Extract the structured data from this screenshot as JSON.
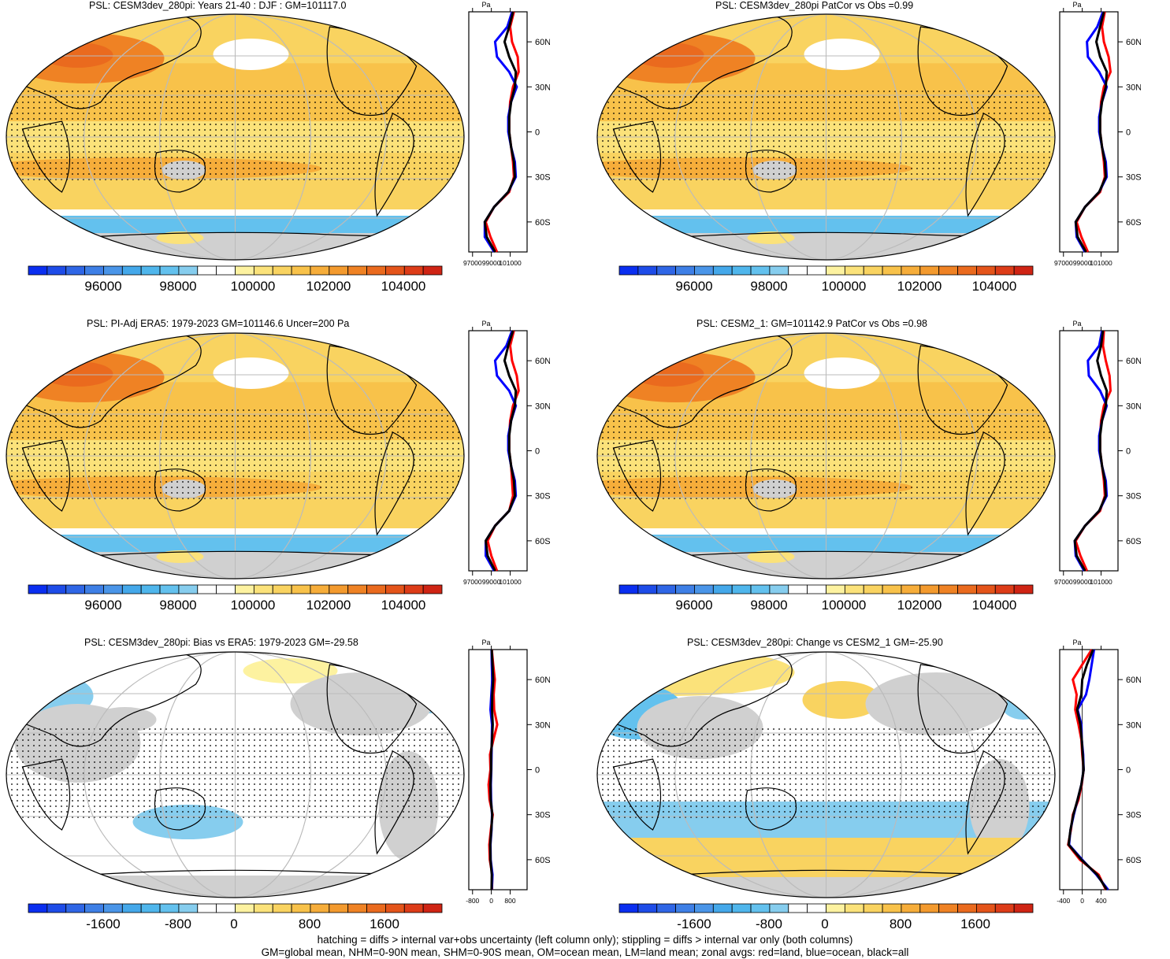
{
  "panels": [
    {
      "id": "p1",
      "title": "PSL: CESM3dev_280pi: Years 21-40 : DJF : GM=101117.0",
      "kind": "abs",
      "profile_xticks": [
        "97000",
        "99000",
        "101000"
      ],
      "profile_unit": "Pa"
    },
    {
      "id": "p2",
      "title": "PSL: CESM3dev_280pi PatCor vs Obs =0.99",
      "kind": "abs",
      "profile_xticks": [
        "97000",
        "99000",
        "101000"
      ],
      "profile_unit": "Pa"
    },
    {
      "id": "p3",
      "title": "PSL: PI-Adj ERA5: 1979-2023 GM=101146.6 Uncer=200 Pa",
      "kind": "abs",
      "profile_xticks": [
        "97000",
        "99000",
        "101000"
      ],
      "profile_unit": "Pa"
    },
    {
      "id": "p4",
      "title": "PSL: CESM2_1: GM=101142.9 PatCor vs Obs =0.98",
      "kind": "abs",
      "profile_xticks": [
        "97000",
        "99000",
        "101000"
      ],
      "profile_unit": "Pa"
    },
    {
      "id": "p5",
      "title": "PSL: CESM3dev_280pi: Bias vs ERA5: 1979-2023 GM=-29.58",
      "kind": "diff",
      "profile_xticks": [
        "-800",
        "0",
        "800"
      ],
      "profile_unit": "Pa"
    },
    {
      "id": "p6",
      "title": "PSL: CESM3dev_280pi: Change vs CESM2_1 GM=-25.90",
      "kind": "diff2",
      "profile_xticks": [
        "-400",
        "0",
        "400"
      ],
      "profile_unit": "Pa"
    }
  ],
  "lat_labels": [
    "60N",
    "30N",
    "0",
    "30S",
    "60S"
  ],
  "colorbar_abs": {
    "labels": [
      "96000",
      "98000",
      "100000",
      "102000",
      "104000"
    ]
  },
  "colorbar_diff": {
    "labels": [
      "-1600",
      "-800",
      "0",
      "800",
      "1600"
    ]
  },
  "colorbar_colors": [
    "#0a2ef0",
    "#1e4ce8",
    "#2f66e6",
    "#3e7fe6",
    "#4a95e8",
    "#44a8ea",
    "#4fb6ec",
    "#63c1ee",
    "#86cdee",
    "#ffffff",
    "#ffffff",
    "#fdf2a0",
    "#fbe27a",
    "#f9d360",
    "#f8c24a",
    "#f6ad3a",
    "#f39a2e",
    "#ef8224",
    "#ea6a1e",
    "#e4541a",
    "#dd3c18",
    "#cf2414"
  ],
  "colors": {
    "land": "red",
    "ocean": "blue",
    "all": "black",
    "gray": "#d0d0d0"
  },
  "footer": [
    "hatching = diffs > internal var+obs uncertainty (left column only); stippling = diffs > internal var only (both columns)",
    "GM=global mean, NHM=0-90N mean, SHM=0-90S mean, OM=ocean mean, LM=land mean; zonal avgs: red=land, blue=ocean, black=all"
  ],
  "chart_data": [
    {
      "type": "heatmap",
      "title": "PSL: CESM3dev_280pi: Years 21-40 : DJF : GM=101117.0",
      "colorbar_labels": [
        "96000",
        "98000",
        "100000",
        "102000",
        "104000"
      ],
      "zonal_profile": {
        "ylabel_ticks": [
          "60N",
          "30N",
          "0",
          "30S",
          "60S"
        ],
        "xticks": [
          "97000",
          "99000",
          "101000"
        ],
        "unit": "Pa",
        "lat": [
          80,
          70,
          60,
          50,
          40,
          30,
          20,
          10,
          0,
          -10,
          -20,
          -30,
          -40,
          -50,
          -60,
          -70,
          -80
        ],
        "land": [
          101400,
          101000,
          101200,
          101800,
          101900,
          101300,
          101000,
          100900,
          100900,
          101100,
          101300,
          101400,
          100900,
          99300,
          98400,
          98900,
          99600
        ],
        "ocean": [
          101200,
          100700,
          99400,
          99600,
          100900,
          101700,
          101100,
          100800,
          100800,
          101100,
          101500,
          101600,
          100800,
          99300,
          98300,
          98300,
          99300
        ],
        "all": [
          101300,
          100900,
          100400,
          100900,
          101600,
          101500,
          101100,
          100900,
          100900,
          101100,
          101400,
          101500,
          100800,
          99300,
          98300,
          98500,
          99400
        ]
      }
    },
    {
      "type": "heatmap",
      "title": "PSL: CESM3dev_280pi PatCor vs Obs =0.99",
      "colorbar_labels": [
        "96000",
        "98000",
        "100000",
        "102000",
        "104000"
      ],
      "zonal_profile": {
        "ylabel_ticks": [
          "60N",
          "30N",
          "0",
          "30S",
          "60S"
        ],
        "xticks": [
          "97000",
          "99000",
          "101000"
        ],
        "unit": "Pa",
        "lat": [
          80,
          70,
          60,
          50,
          40,
          30,
          20,
          10,
          0,
          -10,
          -20,
          -30,
          -40,
          -50,
          -60,
          -70,
          -80
        ],
        "land": [
          101400,
          101100,
          101300,
          101800,
          102000,
          101300,
          101000,
          100900,
          100900,
          101100,
          101300,
          101400,
          100900,
          99300,
          98400,
          98900,
          99600
        ],
        "ocean": [
          101200,
          100600,
          99500,
          99600,
          100800,
          101600,
          101100,
          100800,
          100800,
          101100,
          101500,
          101600,
          100800,
          99300,
          98300,
          98400,
          99300
        ],
        "all": [
          101300,
          100900,
          100500,
          100900,
          101600,
          101500,
          101100,
          100900,
          100900,
          101100,
          101400,
          101500,
          100800,
          99300,
          98300,
          98500,
          99400
        ]
      }
    },
    {
      "type": "heatmap",
      "title": "PSL: PI-Adj ERA5: 1979-2023 GM=101146.6 Uncer=200 Pa",
      "colorbar_labels": [
        "96000",
        "98000",
        "100000",
        "102000",
        "104000"
      ],
      "zonal_profile": {
        "ylabel_ticks": [
          "60N",
          "30N",
          "0",
          "30S",
          "60S"
        ],
        "xticks": [
          "97000",
          "99000",
          "101000"
        ],
        "unit": "Pa",
        "lat": [
          80,
          70,
          60,
          50,
          40,
          30,
          20,
          10,
          0,
          -10,
          -20,
          -30,
          -40,
          -50,
          -60,
          -70,
          -80
        ],
        "land": [
          101400,
          101000,
          101200,
          101700,
          101900,
          101300,
          101000,
          100900,
          100900,
          101100,
          101200,
          101300,
          100900,
          99400,
          98600,
          99000,
          99600
        ],
        "ocean": [
          101200,
          100600,
          99400,
          99600,
          100900,
          101600,
          101100,
          100800,
          100800,
          101100,
          101500,
          101600,
          100900,
          99400,
          98400,
          98400,
          99300
        ],
        "all": [
          101300,
          100800,
          100400,
          100900,
          101600,
          101500,
          101100,
          100900,
          100900,
          101100,
          101400,
          101500,
          100900,
          99400,
          98400,
          98600,
          99400
        ]
      }
    },
    {
      "type": "heatmap",
      "title": "PSL: CESM2_1: GM=101142.9 PatCor vs Obs =0.98",
      "colorbar_labels": [
        "96000",
        "98000",
        "100000",
        "102000",
        "104000"
      ],
      "zonal_profile": {
        "ylabel_ticks": [
          "60N",
          "30N",
          "0",
          "30S",
          "60S"
        ],
        "xticks": [
          "97000",
          "99000",
          "101000"
        ],
        "unit": "Pa",
        "lat": [
          80,
          70,
          60,
          50,
          40,
          30,
          20,
          10,
          0,
          -10,
          -20,
          -30,
          -40,
          -50,
          -60,
          -70,
          -80
        ],
        "land": [
          101300,
          101200,
          101500,
          101900,
          102000,
          101300,
          101000,
          100900,
          100900,
          101100,
          101300,
          101400,
          100900,
          99300,
          98300,
          98800,
          99500
        ],
        "ocean": [
          101100,
          100800,
          99600,
          99700,
          100900,
          101600,
          101100,
          100800,
          100800,
          101100,
          101500,
          101600,
          100800,
          99300,
          98200,
          98300,
          99200
        ],
        "all": [
          101200,
          101000,
          100600,
          101000,
          101600,
          101500,
          101100,
          100900,
          100900,
          101100,
          101400,
          101500,
          100800,
          99300,
          98200,
          98400,
          99300
        ]
      }
    },
    {
      "type": "heatmap",
      "title": "PSL: CESM3dev_280pi: Bias vs ERA5: 1979-2023 GM=-29.58",
      "colorbar_labels": [
        "-1600",
        "-800",
        "0",
        "800",
        "1600"
      ],
      "zonal_profile": {
        "ylabel_ticks": [
          "60N",
          "30N",
          "0",
          "30S",
          "60S"
        ],
        "xticks": [
          "-800",
          "0",
          "800"
        ],
        "unit": "Pa",
        "lat": [
          80,
          70,
          60,
          50,
          40,
          30,
          20,
          10,
          0,
          -10,
          -20,
          -30,
          -40,
          -50,
          -60,
          -70,
          -80
        ],
        "land": [
          20,
          80,
          150,
          100,
          120,
          250,
          90,
          -60,
          -40,
          -120,
          -80,
          60,
          -20,
          -90,
          -70,
          40,
          30
        ],
        "ocean": [
          10,
          20,
          40,
          0,
          -40,
          30,
          20,
          10,
          0,
          -20,
          -10,
          30,
          10,
          -40,
          -30,
          50,
          20
        ],
        "all": [
          15,
          50,
          80,
          40,
          30,
          60,
          30,
          -10,
          -10,
          -40,
          -30,
          40,
          0,
          -50,
          -40,
          20,
          10
        ]
      }
    },
    {
      "type": "heatmap",
      "title": "PSL: CESM3dev_280pi: Change vs CESM2_1 GM=-25.90",
      "colorbar_labels": [
        "-1600",
        "-800",
        "0",
        "800",
        "1600"
      ],
      "zonal_profile": {
        "ylabel_ticks": [
          "60N",
          "30N",
          "0",
          "30S",
          "60S"
        ],
        "xticks": [
          "-400",
          "0",
          "400"
        ],
        "unit": "Pa",
        "lat": [
          80,
          70,
          60,
          50,
          40,
          30,
          20,
          10,
          0,
          -10,
          -20,
          -30,
          -40,
          -50,
          -60,
          -70,
          -80
        ],
        "land": [
          200,
          0,
          -200,
          -120,
          -150,
          -80,
          -20,
          0,
          30,
          -10,
          -80,
          -200,
          -240,
          -300,
          -50,
          350,
          500
        ],
        "ocean": [
          250,
          200,
          150,
          80,
          -100,
          -20,
          -10,
          20,
          30,
          -20,
          -100,
          -180,
          -250,
          -280,
          0,
          300,
          550
        ],
        "all": [
          230,
          100,
          0,
          -20,
          -110,
          -40,
          -10,
          10,
          30,
          -20,
          -100,
          -190,
          -250,
          -290,
          -20,
          320,
          520
        ]
      }
    }
  ]
}
